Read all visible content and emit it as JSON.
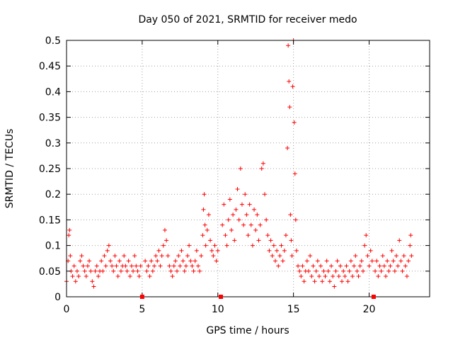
{
  "chart_data": {
    "type": "scatter",
    "title": "Day 050 of 2021, SRMTID for receiver medo",
    "xlabel": "GPS time / hours",
    "ylabel": "SRMTID / TECUs",
    "xlim": [
      0,
      24
    ],
    "ylim": [
      0,
      0.5
    ],
    "grid": true,
    "x_ticks": [
      0,
      5,
      10,
      15,
      20
    ],
    "y_ticks": [
      0,
      0.05,
      0.1,
      0.15,
      0.2,
      0.25,
      0.3,
      0.35,
      0.4,
      0.45,
      0.5
    ],
    "x_tick_labels": [
      "0",
      "5",
      "10",
      "15",
      "20"
    ],
    "y_tick_labels": [
      "0",
      "0.05",
      "0.1",
      "0.15",
      "0.2",
      "0.25",
      "0.3",
      "0.35",
      "0.4",
      "0.45",
      "0.5"
    ],
    "marker": "+",
    "series_color": "#ff0000",
    "gap_markers_x": [
      5.0,
      10.2,
      20.3
    ],
    "series": [
      {
        "name": "SRMTID",
        "points": [
          [
            0.0,
            0.03
          ],
          [
            0.1,
            0.07
          ],
          [
            0.15,
            0.12
          ],
          [
            0.2,
            0.13
          ],
          [
            0.25,
            0.08
          ],
          [
            0.3,
            0.05
          ],
          [
            0.4,
            0.04
          ],
          [
            0.5,
            0.06
          ],
          [
            0.6,
            0.03
          ],
          [
            0.7,
            0.05
          ],
          [
            0.8,
            0.04
          ],
          [
            0.9,
            0.07
          ],
          [
            1.0,
            0.08
          ],
          [
            1.1,
            0.06
          ],
          [
            1.2,
            0.05
          ],
          [
            1.3,
            0.04
          ],
          [
            1.4,
            0.06
          ],
          [
            1.5,
            0.07
          ],
          [
            1.6,
            0.05
          ],
          [
            1.7,
            0.03
          ],
          [
            1.8,
            0.02
          ],
          [
            1.9,
            0.05
          ],
          [
            2.0,
            0.06
          ],
          [
            2.1,
            0.04
          ],
          [
            2.2,
            0.05
          ],
          [
            2.3,
            0.07
          ],
          [
            2.4,
            0.05
          ],
          [
            2.5,
            0.08
          ],
          [
            2.6,
            0.06
          ],
          [
            2.7,
            0.09
          ],
          [
            2.8,
            0.1
          ],
          [
            2.9,
            0.07
          ],
          [
            3.0,
            0.06
          ],
          [
            3.1,
            0.05
          ],
          [
            3.2,
            0.08
          ],
          [
            3.3,
            0.06
          ],
          [
            3.4,
            0.04
          ],
          [
            3.5,
            0.07
          ],
          [
            3.6,
            0.05
          ],
          [
            3.7,
            0.06
          ],
          [
            3.8,
            0.08
          ],
          [
            3.9,
            0.06
          ],
          [
            4.0,
            0.05
          ],
          [
            4.1,
            0.07
          ],
          [
            4.2,
            0.04
          ],
          [
            4.3,
            0.06
          ],
          [
            4.4,
            0.05
          ],
          [
            4.5,
            0.08
          ],
          [
            4.6,
            0.06
          ],
          [
            4.7,
            0.05
          ],
          [
            4.8,
            0.04
          ],
          [
            4.9,
            0.06
          ],
          [
            5.2,
            0.07
          ],
          [
            5.3,
            0.05
          ],
          [
            5.4,
            0.06
          ],
          [
            5.5,
            0.04
          ],
          [
            5.6,
            0.07
          ],
          [
            5.7,
            0.05
          ],
          [
            5.8,
            0.06
          ],
          [
            5.9,
            0.08
          ],
          [
            6.0,
            0.07
          ],
          [
            6.1,
            0.09
          ],
          [
            6.2,
            0.06
          ],
          [
            6.3,
            0.08
          ],
          [
            6.4,
            0.1
          ],
          [
            6.5,
            0.13
          ],
          [
            6.6,
            0.11
          ],
          [
            6.7,
            0.08
          ],
          [
            6.8,
            0.06
          ],
          [
            6.9,
            0.05
          ],
          [
            7.0,
            0.04
          ],
          [
            7.1,
            0.06
          ],
          [
            7.2,
            0.07
          ],
          [
            7.3,
            0.05
          ],
          [
            7.4,
            0.08
          ],
          [
            7.5,
            0.06
          ],
          [
            7.6,
            0.09
          ],
          [
            7.7,
            0.07
          ],
          [
            7.8,
            0.05
          ],
          [
            7.9,
            0.06
          ],
          [
            8.0,
            0.08
          ],
          [
            8.1,
            0.1
          ],
          [
            8.2,
            0.07
          ],
          [
            8.3,
            0.06
          ],
          [
            8.4,
            0.05
          ],
          [
            8.5,
            0.07
          ],
          [
            8.6,
            0.09
          ],
          [
            8.7,
            0.06
          ],
          [
            8.8,
            0.05
          ],
          [
            8.9,
            0.08
          ],
          [
            9.0,
            0.12
          ],
          [
            9.05,
            0.17
          ],
          [
            9.1,
            0.2
          ],
          [
            9.15,
            0.14
          ],
          [
            9.2,
            0.1
          ],
          [
            9.3,
            0.13
          ],
          [
            9.4,
            0.16
          ],
          [
            9.5,
            0.11
          ],
          [
            9.6,
            0.09
          ],
          [
            9.7,
            0.08
          ],
          [
            9.8,
            0.1
          ],
          [
            9.9,
            0.07
          ],
          [
            10.0,
            0.09
          ],
          [
            10.3,
            0.14
          ],
          [
            10.4,
            0.18
          ],
          [
            10.5,
            0.12
          ],
          [
            10.6,
            0.1
          ],
          [
            10.7,
            0.15
          ],
          [
            10.8,
            0.19
          ],
          [
            10.9,
            0.13
          ],
          [
            11.0,
            0.16
          ],
          [
            11.1,
            0.11
          ],
          [
            11.2,
            0.17
          ],
          [
            11.3,
            0.21
          ],
          [
            11.4,
            0.15
          ],
          [
            11.5,
            0.25
          ],
          [
            11.6,
            0.18
          ],
          [
            11.7,
            0.14
          ],
          [
            11.8,
            0.2
          ],
          [
            11.9,
            0.16
          ],
          [
            12.0,
            0.12
          ],
          [
            12.1,
            0.18
          ],
          [
            12.2,
            0.14
          ],
          [
            12.3,
            0.1
          ],
          [
            12.4,
            0.17
          ],
          [
            12.5,
            0.13
          ],
          [
            12.6,
            0.16
          ],
          [
            12.7,
            0.11
          ],
          [
            12.8,
            0.14
          ],
          [
            12.9,
            0.25
          ],
          [
            13.0,
            0.26
          ],
          [
            13.1,
            0.2
          ],
          [
            13.2,
            0.15
          ],
          [
            13.3,
            0.12
          ],
          [
            13.4,
            0.09
          ],
          [
            13.5,
            0.11
          ],
          [
            13.6,
            0.08
          ],
          [
            13.7,
            0.1
          ],
          [
            13.8,
            0.07
          ],
          [
            13.9,
            0.09
          ],
          [
            14.0,
            0.06
          ],
          [
            14.1,
            0.08
          ],
          [
            14.2,
            0.1
          ],
          [
            14.3,
            0.07
          ],
          [
            14.4,
            0.09
          ],
          [
            14.5,
            0.12
          ],
          [
            14.6,
            0.29
          ],
          [
            14.65,
            0.49
          ],
          [
            14.7,
            0.42
          ],
          [
            14.75,
            0.37
          ],
          [
            14.8,
            0.16
          ],
          [
            14.85,
            0.11
          ],
          [
            14.9,
            0.08
          ],
          [
            14.95,
            0.41
          ],
          [
            15.0,
            0.5
          ],
          [
            15.05,
            0.34
          ],
          [
            15.1,
            0.24
          ],
          [
            15.15,
            0.15
          ],
          [
            15.2,
            0.09
          ],
          [
            15.3,
            0.06
          ],
          [
            15.4,
            0.05
          ],
          [
            15.5,
            0.04
          ],
          [
            15.6,
            0.06
          ],
          [
            15.7,
            0.03
          ],
          [
            15.8,
            0.05
          ],
          [
            15.9,
            0.07
          ],
          [
            16.0,
            0.05
          ],
          [
            16.1,
            0.08
          ],
          [
            16.2,
            0.04
          ],
          [
            16.3,
            0.06
          ],
          [
            16.4,
            0.03
          ],
          [
            16.5,
            0.05
          ],
          [
            16.6,
            0.07
          ],
          [
            16.7,
            0.04
          ],
          [
            16.8,
            0.06
          ],
          [
            16.9,
            0.03
          ],
          [
            17.0,
            0.05
          ],
          [
            17.1,
            0.04
          ],
          [
            17.2,
            0.07
          ],
          [
            17.3,
            0.05
          ],
          [
            17.4,
            0.03
          ],
          [
            17.5,
            0.06
          ],
          [
            17.6,
            0.04
          ],
          [
            17.7,
            0.02
          ],
          [
            17.8,
            0.05
          ],
          [
            17.9,
            0.07
          ],
          [
            18.0,
            0.04
          ],
          [
            18.1,
            0.06
          ],
          [
            18.2,
            0.03
          ],
          [
            18.3,
            0.05
          ],
          [
            18.4,
            0.04
          ],
          [
            18.5,
            0.06
          ],
          [
            18.6,
            0.03
          ],
          [
            18.7,
            0.05
          ],
          [
            18.8,
            0.07
          ],
          [
            18.9,
            0.04
          ],
          [
            19.0,
            0.06
          ],
          [
            19.1,
            0.08
          ],
          [
            19.2,
            0.05
          ],
          [
            19.3,
            0.04
          ],
          [
            19.4,
            0.06
          ],
          [
            19.5,
            0.07
          ],
          [
            19.6,
            0.05
          ],
          [
            19.7,
            0.1
          ],
          [
            19.8,
            0.12
          ],
          [
            19.9,
            0.08
          ],
          [
            20.0,
            0.06
          ],
          [
            20.1,
            0.09
          ],
          [
            20.2,
            0.07
          ],
          [
            20.4,
            0.05
          ],
          [
            20.5,
            0.07
          ],
          [
            20.6,
            0.04
          ],
          [
            20.7,
            0.06
          ],
          [
            20.8,
            0.05
          ],
          [
            20.9,
            0.08
          ],
          [
            21.0,
            0.06
          ],
          [
            21.1,
            0.04
          ],
          [
            21.2,
            0.07
          ],
          [
            21.3,
            0.05
          ],
          [
            21.4,
            0.06
          ],
          [
            21.5,
            0.09
          ],
          [
            21.6,
            0.07
          ],
          [
            21.7,
            0.05
          ],
          [
            21.8,
            0.08
          ],
          [
            21.9,
            0.06
          ],
          [
            22.0,
            0.11
          ],
          [
            22.1,
            0.07
          ],
          [
            22.2,
            0.05
          ],
          [
            22.3,
            0.08
          ],
          [
            22.4,
            0.06
          ],
          [
            22.5,
            0.04
          ],
          [
            22.6,
            0.07
          ],
          [
            22.7,
            0.1
          ],
          [
            22.75,
            0.12
          ],
          [
            22.8,
            0.08
          ]
        ]
      }
    ]
  }
}
